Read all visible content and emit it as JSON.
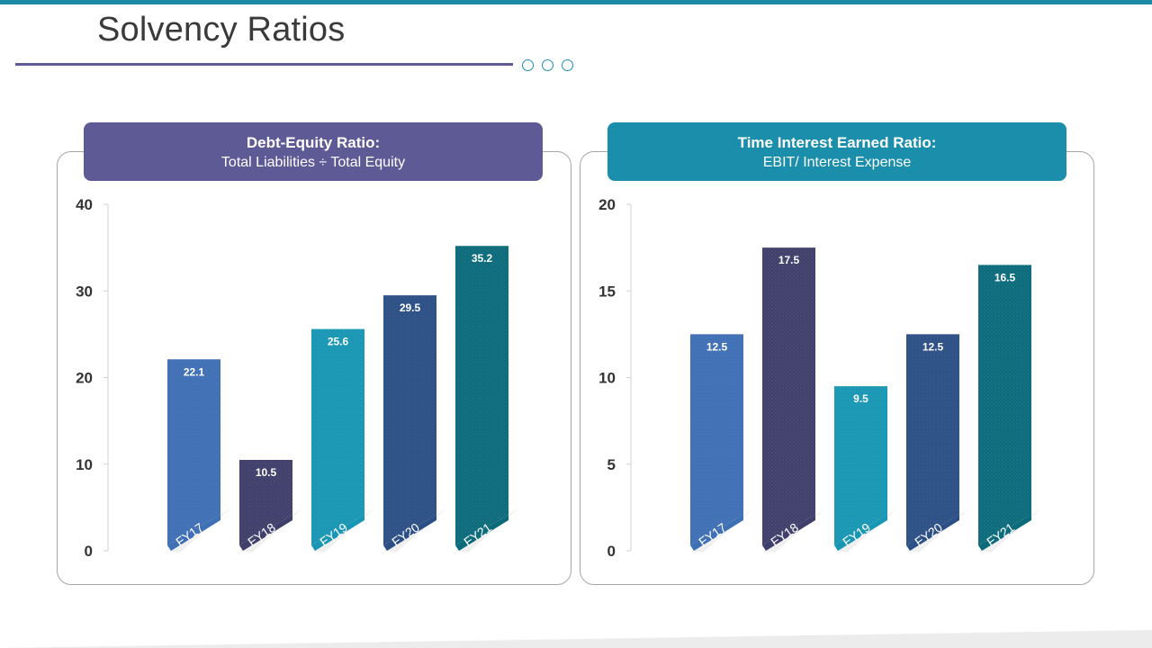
{
  "page": {
    "title": "Solvency Ratios"
  },
  "colors": {
    "accent_teal": "#1b8aa5",
    "purple_header": "#5e5a96",
    "teal_header": "#1a8eaa",
    "bar_colors": [
      "#3f6fb4",
      "#403f6c",
      "#1896b3",
      "#2c4f86",
      "#0c6b7b"
    ]
  },
  "chart_data": [
    {
      "type": "bar",
      "header_title": "Debt-Equity  Ratio:",
      "header_subtitle": "Total Liabilities ÷ Total Equity",
      "categories": [
        "FY17",
        "FY18",
        "FY19",
        "FY20",
        "FY21"
      ],
      "values": [
        22.1,
        10.5,
        25.6,
        29.5,
        35.2
      ],
      "value_labels": [
        "22.1",
        "10.5",
        "25.6",
        "29.5",
        "35.2"
      ],
      "yticks": [
        0,
        10,
        20,
        30,
        40
      ],
      "ylim": [
        0,
        40
      ],
      "grid": false,
      "legend": "none"
    },
    {
      "type": "bar",
      "header_title": "Time Interest Earned Ratio:",
      "header_subtitle": "EBIT/ Interest Expense",
      "categories": [
        "FY17",
        "FY18",
        "FY19",
        "FY20",
        "FY21"
      ],
      "values": [
        12.5,
        17.5,
        9.5,
        12.5,
        16.5
      ],
      "value_labels": [
        "12.5",
        "17.5",
        "9.5",
        "12.5",
        "16.5"
      ],
      "yticks": [
        0,
        5,
        10,
        15,
        20
      ],
      "ylim": [
        0,
        20
      ],
      "grid": false,
      "legend": "none"
    }
  ]
}
